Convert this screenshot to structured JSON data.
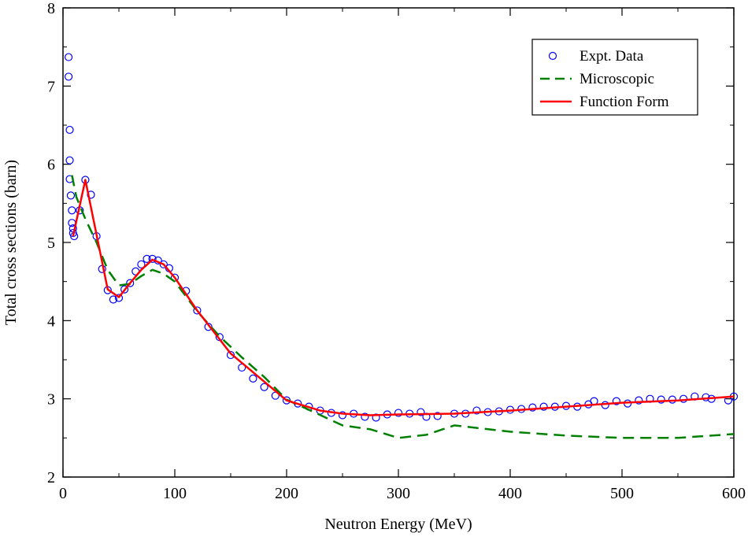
{
  "chart_data": {
    "type": "scatter",
    "title": "",
    "xlabel": "Neutron Energy (MeV)",
    "ylabel": "Total cross sections (barn)",
    "xlim": [
      0,
      600
    ],
    "ylim": [
      2,
      8
    ],
    "xticks": [
      0,
      100,
      200,
      300,
      400,
      500,
      600
    ],
    "yticks": [
      2,
      3,
      4,
      5,
      6,
      7,
      8
    ],
    "legend_position": "top-right",
    "series": [
      {
        "name": "Expt. Data",
        "style": "open-circle",
        "color": "#0000ff",
        "points": [
          [
            5,
            7.37
          ],
          [
            5,
            7.12
          ],
          [
            6,
            6.44
          ],
          [
            6,
            6.05
          ],
          [
            6,
            5.81
          ],
          [
            7,
            5.6
          ],
          [
            8,
            5.41
          ],
          [
            8,
            5.25
          ],
          [
            9,
            5.18
          ],
          [
            9,
            5.12
          ],
          [
            10,
            5.08
          ],
          [
            15,
            5.41
          ],
          [
            20,
            5.8
          ],
          [
            25,
            5.61
          ],
          [
            30,
            5.08
          ],
          [
            35,
            4.66
          ],
          [
            40,
            4.39
          ],
          [
            45,
            4.27
          ],
          [
            50,
            4.29
          ],
          [
            55,
            4.4
          ],
          [
            60,
            4.48
          ],
          [
            65,
            4.63
          ],
          [
            70,
            4.72
          ],
          [
            75,
            4.79
          ],
          [
            80,
            4.79
          ],
          [
            85,
            4.77
          ],
          [
            90,
            4.72
          ],
          [
            95,
            4.67
          ],
          [
            100,
            4.55
          ],
          [
            110,
            4.38
          ],
          [
            120,
            4.13
          ],
          [
            130,
            3.92
          ],
          [
            140,
            3.79
          ],
          [
            150,
            3.56
          ],
          [
            160,
            3.4
          ],
          [
            170,
            3.26
          ],
          [
            180,
            3.15
          ],
          [
            190,
            3.04
          ],
          [
            200,
            2.98
          ],
          [
            210,
            2.94
          ],
          [
            220,
            2.9
          ],
          [
            230,
            2.85
          ],
          [
            240,
            2.82
          ],
          [
            250,
            2.79
          ],
          [
            260,
            2.81
          ],
          [
            270,
            2.77
          ],
          [
            280,
            2.76
          ],
          [
            290,
            2.8
          ],
          [
            300,
            2.82
          ],
          [
            310,
            2.81
          ],
          [
            320,
            2.83
          ],
          [
            325,
            2.77
          ],
          [
            335,
            2.78
          ],
          [
            350,
            2.81
          ],
          [
            360,
            2.81
          ],
          [
            370,
            2.85
          ],
          [
            380,
            2.83
          ],
          [
            390,
            2.84
          ],
          [
            400,
            2.86
          ],
          [
            410,
            2.87
          ],
          [
            420,
            2.89
          ],
          [
            430,
            2.9
          ],
          [
            440,
            2.9
          ],
          [
            450,
            2.91
          ],
          [
            460,
            2.9
          ],
          [
            470,
            2.93
          ],
          [
            475,
            2.97
          ],
          [
            485,
            2.92
          ],
          [
            495,
            2.97
          ],
          [
            505,
            2.94
          ],
          [
            515,
            2.98
          ],
          [
            525,
            3.0
          ],
          [
            535,
            2.99
          ],
          [
            545,
            2.99
          ],
          [
            555,
            3.0
          ],
          [
            565,
            3.03
          ],
          [
            575,
            3.02
          ],
          [
            580,
            3.0
          ],
          [
            595,
            2.98
          ],
          [
            600,
            3.03
          ]
        ]
      },
      {
        "name": "Microscopic",
        "style": "dashed",
        "color": "#008000",
        "points": [
          [
            8,
            5.86
          ],
          [
            12,
            5.58
          ],
          [
            20,
            5.3
          ],
          [
            30,
            5.0
          ],
          [
            40,
            4.65
          ],
          [
            50,
            4.45
          ],
          [
            60,
            4.47
          ],
          [
            70,
            4.57
          ],
          [
            80,
            4.65
          ],
          [
            90,
            4.6
          ],
          [
            100,
            4.5
          ],
          [
            120,
            4.12
          ],
          [
            140,
            3.8
          ],
          [
            160,
            3.53
          ],
          [
            180,
            3.28
          ],
          [
            200,
            2.99
          ],
          [
            220,
            2.86
          ],
          [
            250,
            2.66
          ],
          [
            275,
            2.61
          ],
          [
            300,
            2.5
          ],
          [
            325,
            2.54
          ],
          [
            350,
            2.66
          ],
          [
            375,
            2.62
          ],
          [
            400,
            2.58
          ],
          [
            450,
            2.53
          ],
          [
            500,
            2.5
          ],
          [
            550,
            2.5
          ],
          [
            600,
            2.55
          ]
        ]
      },
      {
        "name": "Function Form",
        "style": "solid",
        "color": "#ff0000",
        "points": [
          [
            9,
            5.08
          ],
          [
            20,
            5.8
          ],
          [
            40,
            4.4
          ],
          [
            50,
            4.3
          ],
          [
            60,
            4.48
          ],
          [
            70,
            4.65
          ],
          [
            80,
            4.78
          ],
          [
            90,
            4.72
          ],
          [
            100,
            4.55
          ],
          [
            120,
            4.13
          ],
          [
            150,
            3.58
          ],
          [
            180,
            3.22
          ],
          [
            200,
            2.98
          ],
          [
            230,
            2.85
          ],
          [
            250,
            2.81
          ],
          [
            275,
            2.79
          ],
          [
            300,
            2.8
          ],
          [
            350,
            2.81
          ],
          [
            400,
            2.85
          ],
          [
            450,
            2.9
          ],
          [
            500,
            2.95
          ],
          [
            550,
            2.98
          ],
          [
            600,
            3.03
          ]
        ]
      }
    ]
  }
}
